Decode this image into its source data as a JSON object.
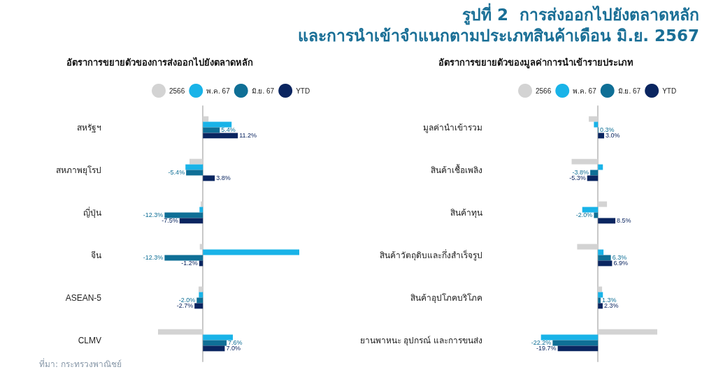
{
  "chart_data": [
    {
      "type": "bar",
      "orientation": "horizontal",
      "title": "รูปที่ 2  การส่งออกไปยังตลาดหลัก\nและการนำเข้าจำแนกตามประเภทสินค้าเดือน มิ.ย. 2567",
      "subtitle": "อัตราการขยายตัวของการส่งออกไปยังตลาดหลัก",
      "categories": [
        "สหรัฐฯ",
        "สหภาพยุโรป",
        "ญี่ปุ่น",
        "จีน",
        "ASEAN-5",
        "CLMV"
      ],
      "tick_labels": "y",
      "grid": false,
      "legend": "top",
      "annotations": [
        "ที่มา: กระทรวงพาณิชย์"
      ],
      "series": [
        {
          "name": "2566",
          "color": "#d3d3d3",
          "values": [
            1.8,
            -4.3,
            -0.7,
            -1.0,
            -1.4,
            -14.4
          ]
        },
        {
          "name": "พ.ค. 67",
          "color": "#19b3e8",
          "values": [
            9.2,
            -5.6,
            -1.1,
            30.9,
            -1.3,
            9.6
          ]
        },
        {
          "name": "มิ.ย. 67",
          "color": "#0f6f96",
          "values": [
            5.4,
            -5.4,
            -12.3,
            -12.3,
            -2.0,
            7.6
          ],
          "value_labels": [
            "5.4%",
            "-5.4%",
            "-12.3%",
            "-12.3%",
            "-2.0%",
            "7.6%"
          ]
        },
        {
          "name": "YTD",
          "color": "#0a2560",
          "values": [
            11.2,
            3.8,
            -7.5,
            -1.2,
            -2.7,
            7.0
          ],
          "value_labels": [
            "11.2%",
            "3.8%",
            "-7.5%",
            "-1.2%",
            "-2.7%",
            "7.0%"
          ]
        }
      ]
    },
    {
      "type": "bar",
      "orientation": "horizontal",
      "subtitle": "อัตราการขยายตัวของมูลค่าการนำเข้ารายประเภท",
      "categories": [
        "มูลค่านำเข้ารวม",
        "สินค้าเชื้อเพลิง",
        "สินค้าทุน",
        "สินค้าวัตถุดิบและกึ่งสำเร็จรูป",
        "สินค้าอุปโภคบริโภค",
        "ยานพาหนะ อุปกรณ์ และการขนส่ง"
      ],
      "tick_labels": "y",
      "grid": false,
      "legend": "top",
      "series": [
        {
          "name": "2566",
          "color": "#d3d3d3",
          "values": [
            -4.5,
            -12.9,
            4.4,
            -10.2,
            2.0,
            29.0
          ]
        },
        {
          "name": "พ.ค. 67",
          "color": "#19b3e8",
          "values": [
            -2.0,
            2.4,
            -7.7,
            2.7,
            2.4,
            -27.9
          ]
        },
        {
          "name": "มิ.ย. 67",
          "color": "#0f6f96",
          "values": [
            0.3,
            -3.8,
            -2.0,
            6.3,
            1.3,
            -22.2
          ],
          "value_labels": [
            "0.3%",
            "-3.8%",
            "-2.0%",
            "6.3%",
            "1.3%",
            "-22.2%"
          ]
        },
        {
          "name": "YTD",
          "color": "#0a2560",
          "values": [
            3.0,
            -5.3,
            8.5,
            6.9,
            2.3,
            -19.7
          ],
          "value_labels": [
            "3.0%",
            "-5.3%",
            "8.5%",
            "6.9%",
            "2.3%",
            "-19.7%"
          ]
        }
      ]
    }
  ]
}
